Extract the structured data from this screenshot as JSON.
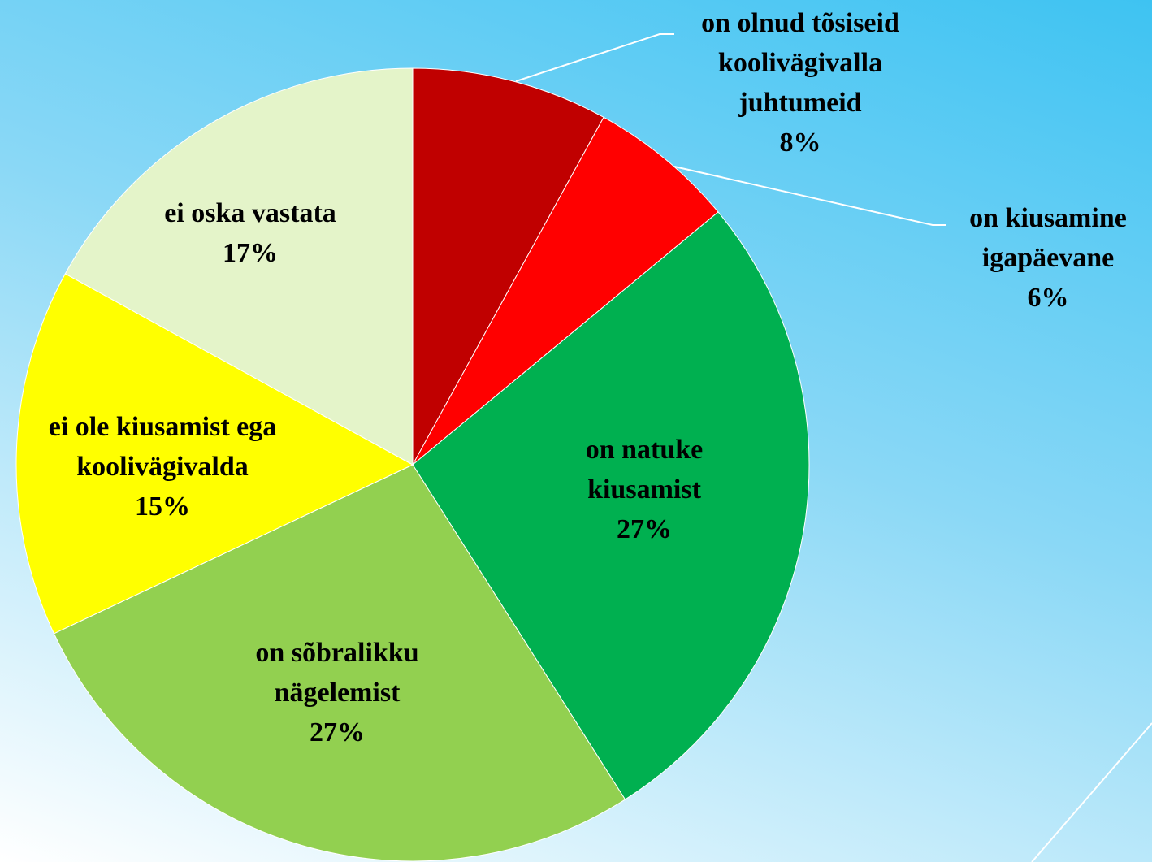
{
  "chart_data": {
    "type": "pie",
    "categories": [
      "on olnud tõsiseid koolivägivalla juhtumeid",
      "on kiusamine igapäevane",
      "on natuke kiusamist",
      "on sõbralikku nägelemist",
      "ei ole kiusamist ega koolivägivalda",
      "ei oska vastata"
    ],
    "values": [
      8,
      6,
      27,
      27,
      15,
      17
    ],
    "value_labels": [
      "8%",
      "6%",
      "27%",
      "27%",
      "15%",
      "17%"
    ],
    "colors": [
      "#c00000",
      "#ff0000",
      "#00b050",
      "#92d050",
      "#ffff00",
      "#e4f4c9"
    ]
  }
}
